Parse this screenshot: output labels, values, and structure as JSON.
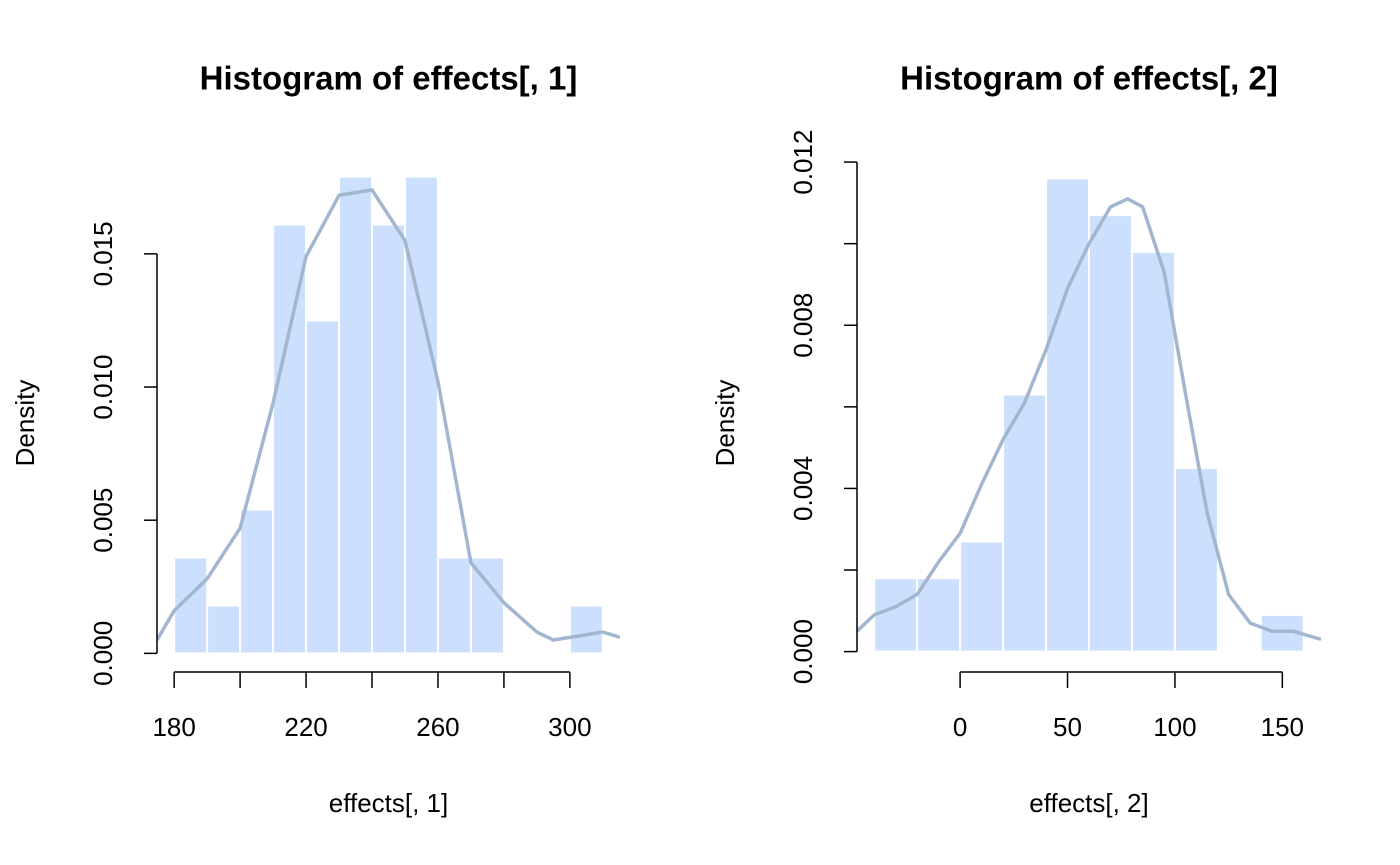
{
  "chart_data": [
    {
      "type": "histogram",
      "title": "Histogram of effects[, 1]",
      "xlabel": "effects[, 1]",
      "ylabel": "Density",
      "bins": [
        180,
        190,
        200,
        210,
        220,
        230,
        240,
        250,
        260,
        270,
        280,
        290,
        300,
        310
      ],
      "values": [
        0.0036,
        0.0018,
        0.0054,
        0.0161,
        0.0125,
        0.0179,
        0.0161,
        0.0179,
        0.0036,
        0.0036,
        0,
        0,
        0.0018
      ],
      "color": "#cce0fd",
      "edge_color": "#ffffff",
      "line_color": "#a3b6d0",
      "density_x": [
        174.8,
        180,
        185,
        190,
        200,
        210,
        220,
        230,
        240,
        250,
        260,
        270,
        280,
        290,
        295,
        300,
        310,
        315.2
      ],
      "density_y": [
        0.0005,
        0.0016,
        0.0022,
        0.0028,
        0.0047,
        0.0094,
        0.0149,
        0.0172,
        0.0174,
        0.0155,
        0.0102,
        0.0034,
        0.0019,
        0.0008,
        0.0005,
        0.0006,
        0.0008,
        0.0006
      ],
      "xlim": [
        174.8,
        315.2
      ],
      "ylim": [
        -0.0007,
        0.0186
      ],
      "xticks": [
        180,
        {
          "value": 200,
          "label": null
        },
        220,
        {
          "value": 240,
          "label": null
        },
        260,
        {
          "value": 280,
          "label": null
        },
        300
      ],
      "yticks": [
        {
          "value": 0,
          "label": "0.000"
        },
        {
          "value": 0.005,
          "label": "0.005"
        },
        {
          "value": 0.01,
          "label": "0.010"
        },
        {
          "value": 0.015,
          "label": "0.015"
        }
      ]
    },
    {
      "type": "histogram",
      "title": "Histogram of effects[, 2]",
      "xlabel": "effects[, 2]",
      "ylabel": "Density",
      "bins": [
        -40,
        -20,
        0,
        20,
        40,
        60,
        80,
        100,
        120,
        140,
        160
      ],
      "values": [
        0.0018,
        0.0018,
        0.0027,
        0.0063,
        0.0116,
        0.0107,
        0.0098,
        0.0045,
        0,
        0.0009
      ],
      "color": "#cce0fd",
      "edge_color": "#ffffff",
      "line_color": "#a3b6d0",
      "density_x": [
        -48,
        -40,
        -30,
        -20,
        -10,
        0,
        10,
        20,
        30,
        40,
        50,
        60,
        70,
        78,
        85,
        95,
        105,
        115,
        125,
        135,
        145,
        155,
        168
      ],
      "density_y": [
        0.0005,
        0.0009,
        0.0011,
        0.0014,
        0.0022,
        0.0029,
        0.0041,
        0.0052,
        0.0061,
        0.0074,
        0.0089,
        0.01,
        0.0109,
        0.0111,
        0.0109,
        0.0093,
        0.0063,
        0.0034,
        0.0014,
        0.0007,
        0.0005,
        0.0005,
        0.0003
      ],
      "xlim": [
        -48,
        168
      ],
      "ylim": [
        -0.0005,
        0.0121
      ],
      "xticks": [
        0,
        50,
        100,
        150
      ],
      "yticks": [
        {
          "value": 0,
          "label": "0.000"
        },
        {
          "value": 0.002,
          "label": null
        },
        {
          "value": 0.004,
          "label": "0.004"
        },
        {
          "value": 0.006,
          "label": null
        },
        {
          "value": 0.008,
          "label": "0.008"
        },
        {
          "value": 0.01,
          "label": null
        },
        {
          "value": 0.012,
          "label": "0.012"
        }
      ]
    }
  ]
}
